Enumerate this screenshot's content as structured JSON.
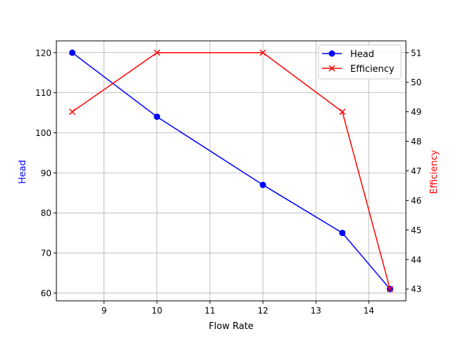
{
  "chart_data": {
    "type": "line",
    "title": "",
    "xlabel": "Flow Rate",
    "ylabel": "Head",
    "ylabel_right": "Efficiency",
    "x": [
      8.4,
      10,
      12,
      13.5,
      14.4
    ],
    "series": [
      {
        "name": "Head",
        "axis": "left",
        "color": "#0000ff",
        "marker": "circle",
        "values": [
          120,
          104,
          87,
          75,
          61
        ]
      },
      {
        "name": "Efficiency",
        "axis": "right",
        "color": "#ff0000",
        "marker": "x",
        "values": [
          49,
          51,
          51,
          49,
          43
        ]
      }
    ],
    "xlim": [
      8.1,
      14.7
    ],
    "ylim": [
      58.05,
      122.95
    ],
    "ylim_right": [
      42.6,
      51.4
    ],
    "xticks": [
      9,
      10,
      11,
      12,
      13,
      14
    ],
    "yticks": [
      60,
      70,
      80,
      90,
      100,
      110,
      120
    ],
    "yticks_right": [
      43,
      44,
      45,
      46,
      47,
      48,
      49,
      50,
      51
    ],
    "grid": true,
    "legend_position": "upper right"
  },
  "labels": {
    "xlabel": "Flow Rate",
    "ylabel": "Head",
    "ylabel_right": "Efficiency",
    "legend_head": "Head",
    "legend_eff": "Efficiency"
  }
}
